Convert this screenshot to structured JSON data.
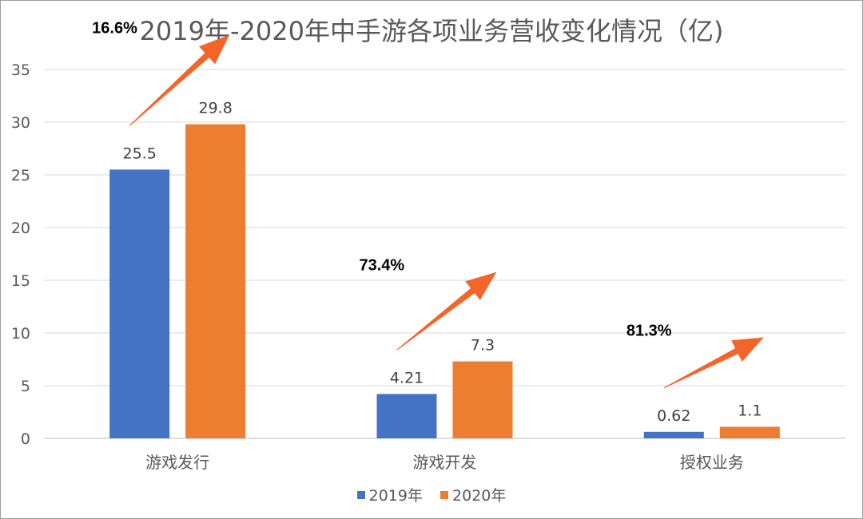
{
  "chart_data": {
    "type": "bar",
    "title": "2019年-2020年中手游各项业务营收变化情况（亿)",
    "categories": [
      "游戏发行",
      "游戏开发",
      "授权业务"
    ],
    "series": [
      {
        "name": "2019年",
        "values": [
          25.5,
          4.21,
          0.62
        ],
        "labels": [
          "25.5",
          "4.21",
          "0.62"
        ],
        "color": "#4472c4"
      },
      {
        "name": "2020年",
        "values": [
          29.8,
          7.3,
          1.1
        ],
        "labels": [
          "29.8",
          "7.3",
          "1.1"
        ],
        "color": "#ed7d31"
      }
    ],
    "ylim": [
      0,
      35
    ],
    "yticks": [
      "0",
      "5",
      "10",
      "15",
      "20",
      "25",
      "30",
      "35"
    ],
    "grid": true,
    "legend_position": "bottom",
    "annotations": [
      {
        "text": "16.6%",
        "category": "游戏发行"
      },
      {
        "text": "73.4%",
        "category": "游戏开发"
      },
      {
        "text": "81.3%",
        "category": "授权业务"
      }
    ],
    "arrow_color": "#f4652a"
  }
}
